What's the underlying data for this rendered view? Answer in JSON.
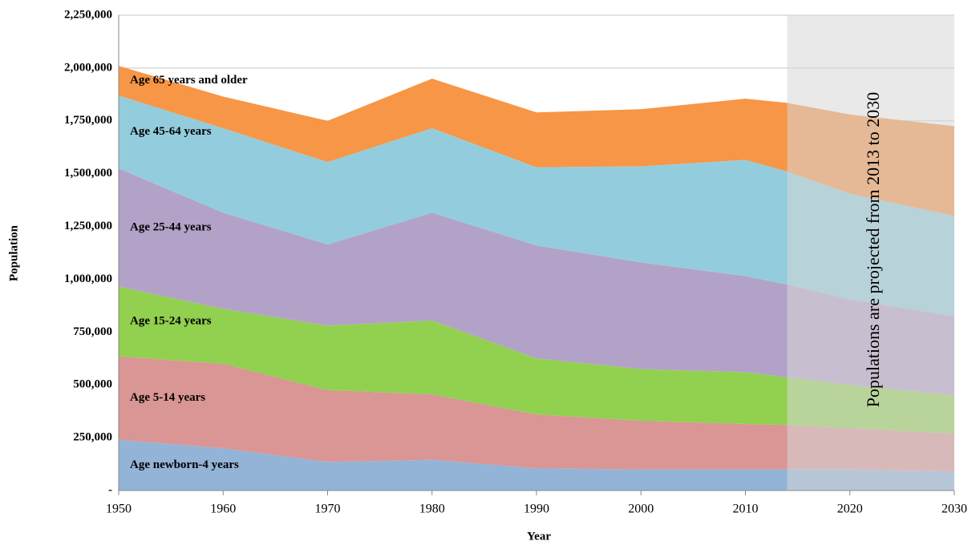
{
  "chart_data": {
    "type": "stacked_area",
    "x_label": "Year",
    "y_label": "Population",
    "x": [
      1950,
      1960,
      1970,
      1980,
      1990,
      2000,
      2010,
      2014,
      2020,
      2030
    ],
    "xlim": [
      1950,
      2030
    ],
    "xticks": [
      1950,
      1960,
      1970,
      1980,
      1990,
      2000,
      2010,
      2020,
      2030
    ],
    "ylim": [
      0,
      2250000
    ],
    "yticks": [
      {
        "value": 0,
        "label": "-"
      },
      {
        "value": 250000,
        "label": "250,000"
      },
      {
        "value": 500000,
        "label": "500,000"
      },
      {
        "value": 750000,
        "label": "750,000"
      },
      {
        "value": 1000000,
        "label": "1,000,000"
      },
      {
        "value": 1250000,
        "label": "1,250,000"
      },
      {
        "value": 1500000,
        "label": "1,500,000"
      },
      {
        "value": 1750000,
        "label": "1,750,000"
      },
      {
        "value": 2000000,
        "label": "2,000,000"
      },
      {
        "value": 2250000,
        "label": "2,250,000"
      }
    ],
    "grid": true,
    "series": [
      {
        "name": "Age newborn-4 years",
        "color": "#93b3d7",
        "values": [
          240000,
          200000,
          135000,
          145000,
          105000,
          100000,
          100000,
          100000,
          100000,
          90000
        ]
      },
      {
        "name": "Age 5-14 years",
        "color": "#d99694",
        "values": [
          395000,
          400000,
          340000,
          310000,
          255000,
          230000,
          215000,
          210000,
          195000,
          180000
        ]
      },
      {
        "name": "Age 15-24 years",
        "color": "#92d050",
        "values": [
          330000,
          260000,
          305000,
          350000,
          265000,
          245000,
          245000,
          225000,
          205000,
          180000
        ]
      },
      {
        "name": "Age 25-44  years",
        "color": "#b3a2c7",
        "values": [
          560000,
          455000,
          385000,
          510000,
          535000,
          505000,
          455000,
          440000,
          405000,
          375000
        ]
      },
      {
        "name": "Age 45-64  years",
        "color": "#93cddd",
        "values": [
          345000,
          400000,
          390000,
          400000,
          370000,
          455000,
          550000,
          535000,
          500000,
          475000
        ]
      },
      {
        "name": "Age 65 years and older",
        "color": "#f79646",
        "values": [
          140000,
          150000,
          195000,
          235000,
          260000,
          270000,
          290000,
          325000,
          375000,
          425000
        ]
      }
    ],
    "projection": {
      "range": [
        2014,
        2030
      ],
      "text": "Populations are projected from 2013 to 2030"
    }
  }
}
